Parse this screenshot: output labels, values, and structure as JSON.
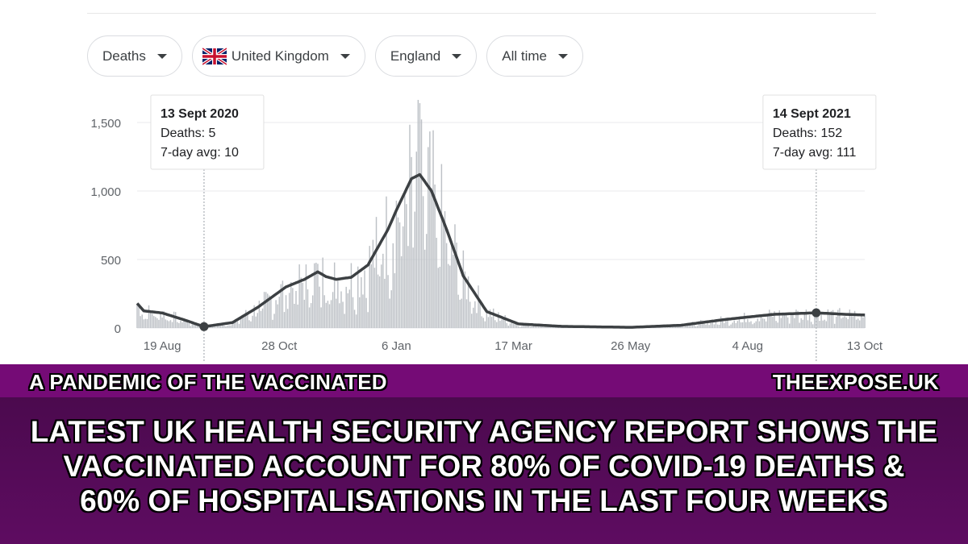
{
  "filters": [
    {
      "label": "Deaths",
      "flag": false
    },
    {
      "label": "United Kingdom",
      "flag": true
    },
    {
      "label": "England",
      "flag": false
    },
    {
      "label": "All time",
      "flag": false
    }
  ],
  "tooltips": [
    {
      "date": "13 Sept 2020",
      "deaths": "Deaths: 5",
      "avg": "7-day avg: 10",
      "x_index": 40
    },
    {
      "date": "14 Sept 2021",
      "deaths": "Deaths: 152",
      "avg": "7-day avg: 111",
      "x_index": 406
    }
  ],
  "banner": {
    "kicker_left": "A PANDEMIC OF THE VACCINATED",
    "kicker_right": "THEEXPOSE.UK",
    "headline_lines": [
      "LATEST UK HEALTH SECURITY AGENCY REPORT SHOWS THE",
      "VACCINATED ACCOUNT FOR 80% OF COVID-19 DEATHS &",
      "60% OF HOSPITALISATIONS IN THE LAST FOUR WEEKS"
    ]
  },
  "colors": {
    "bar": "#bdc1c6",
    "line": "#3c4043",
    "grid": "#e8eaed",
    "banner_top": "#750b76",
    "banner_main": "#4b0a4e"
  },
  "chart_data": {
    "type": "bar",
    "series": [
      {
        "name": "Deaths",
        "kind": "bar"
      },
      {
        "name": "7-day avg",
        "kind": "line"
      }
    ],
    "x_start": "4 Aug 2020",
    "x_end": "13 Oct 2021",
    "x_tick_labels": [
      "19 Aug",
      "28 Oct",
      "6 Jan",
      "17 Mar",
      "26 May",
      "4 Aug",
      "13 Oct"
    ],
    "y_tick_labels": [
      "0",
      "500",
      "1,000",
      "1,500"
    ],
    "ylim": [
      0,
      1650
    ],
    "grid": true,
    "avg_points": [
      [
        "2020-08-04",
        180
      ],
      [
        "2020-08-08",
        125
      ],
      [
        "2020-08-19",
        110
      ],
      [
        "2020-09-01",
        60
      ],
      [
        "2020-09-13",
        10
      ],
      [
        "2020-09-30",
        40
      ],
      [
        "2020-10-15",
        150
      ],
      [
        "2020-11-01",
        300
      ],
      [
        "2020-11-12",
        355
      ],
      [
        "2020-11-20",
        410
      ],
      [
        "2020-11-25",
        375
      ],
      [
        "2020-12-01",
        355
      ],
      [
        "2020-12-10",
        370
      ],
      [
        "2020-12-20",
        460
      ],
      [
        "2021-01-01",
        720
      ],
      [
        "2021-01-06",
        860
      ],
      [
        "2021-01-15",
        1090
      ],
      [
        "2021-01-20",
        1120
      ],
      [
        "2021-01-27",
        1000
      ],
      [
        "2021-02-05",
        720
      ],
      [
        "2021-02-15",
        380
      ],
      [
        "2021-03-01",
        120
      ],
      [
        "2021-03-20",
        30
      ],
      [
        "2021-04-15",
        12
      ],
      [
        "2021-05-26",
        5
      ],
      [
        "2021-06-25",
        20
      ],
      [
        "2021-07-20",
        60
      ],
      [
        "2021-08-04",
        80
      ],
      [
        "2021-08-20",
        100
      ],
      [
        "2021-09-14",
        111
      ],
      [
        "2021-10-01",
        100
      ],
      [
        "2021-10-13",
        95
      ]
    ],
    "bar_peak": [
      "2021-01-19",
      1665
    ]
  }
}
